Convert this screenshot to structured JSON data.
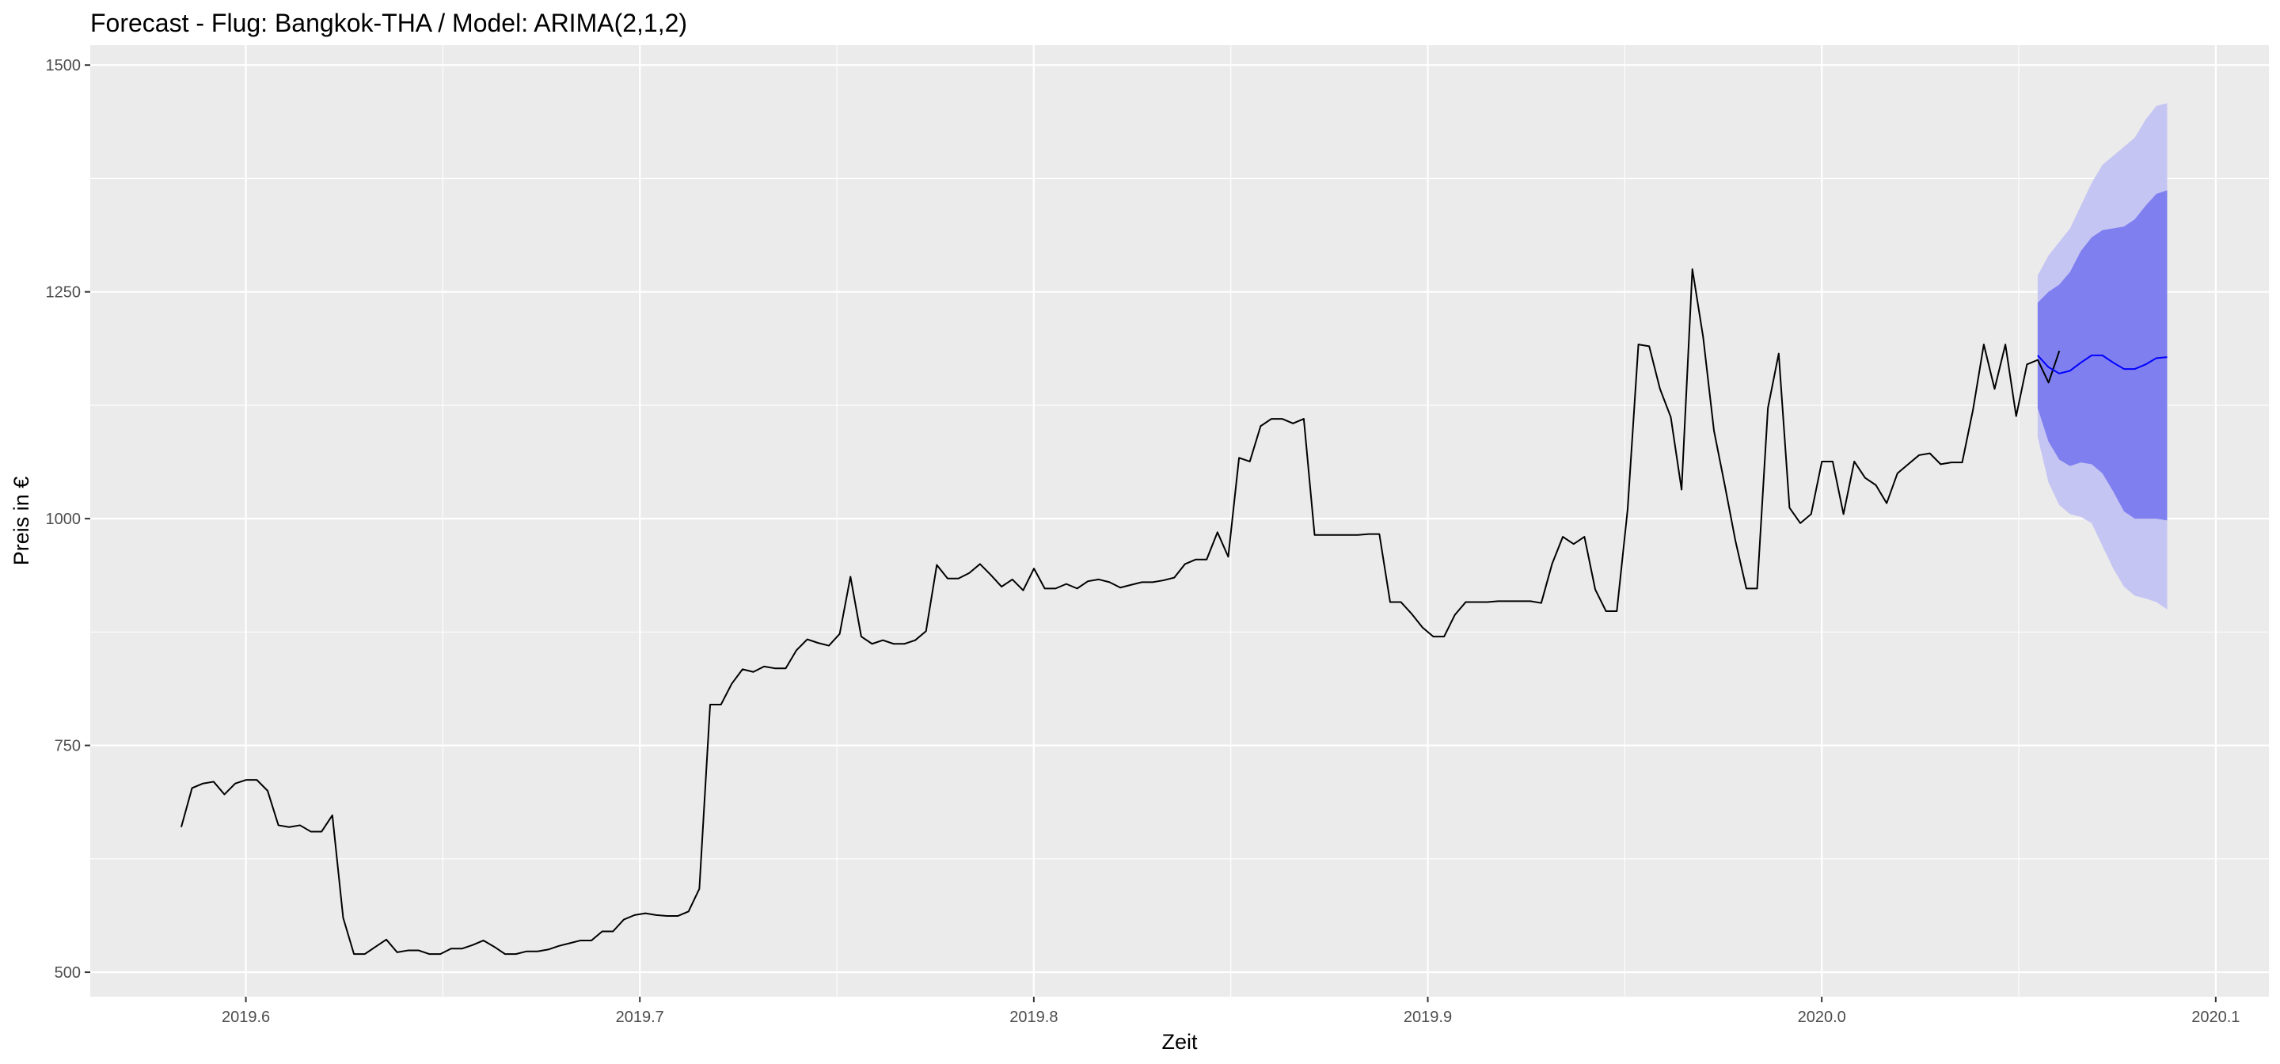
{
  "chart_data": {
    "type": "line",
    "title": "Forecast - Flug: Bangkok-THA / Model: ARIMA(2,1,2)",
    "xlabel": "Zeit",
    "ylabel": "Preis in €",
    "xlim": [
      2019.5605,
      2020.1135
    ],
    "ylim": [
      473,
      1522
    ],
    "x_ticks": [
      2019.6,
      2019.7,
      2019.8,
      2019.9,
      2020.0,
      2020.1
    ],
    "x_tick_labels": [
      "2019.6",
      "2019.7",
      "2019.8",
      "2019.9",
      "2020.0",
      "2020.1"
    ],
    "y_ticks": [
      500,
      750,
      1000,
      1250,
      1500
    ],
    "y_tick_labels": [
      "500",
      "750",
      "1000",
      "1250",
      "1500"
    ],
    "grid": true,
    "legend": "none",
    "colors": {
      "panel": "#ebebeb",
      "grid": "#ffffff",
      "series": "#000000",
      "forecast": "#0000ff",
      "interval_80": "#7f7ff0",
      "interval_95": "#c5c5f3"
    },
    "series": [
      {
        "x_start": 2019.5836,
        "x_step": 0.0027397,
        "values": [
          660,
          703,
          708,
          710,
          696,
          708,
          712,
          712,
          700,
          662,
          660,
          662,
          655,
          655,
          673,
          560,
          520,
          520,
          528,
          536,
          522,
          524,
          524,
          520,
          520,
          526,
          526,
          530,
          535,
          528,
          520,
          520,
          523,
          523,
          525,
          529,
          532,
          535,
          535,
          545,
          545,
          558,
          563,
          565,
          563,
          562,
          562,
          567,
          592,
          795,
          795,
          818,
          834,
          831,
          837,
          835,
          835,
          855,
          867,
          863,
          860,
          873,
          936,
          870,
          862,
          866,
          862,
          862,
          866,
          876,
          949,
          934,
          934,
          940,
          950,
          938,
          925,
          933,
          921,
          945,
          923,
          923,
          928,
          923,
          931,
          933,
          930,
          924,
          927,
          930,
          930,
          932,
          935,
          950,
          955,
          955,
          985,
          958,
          1067,
          1063,
          1102,
          1110,
          1110,
          1105,
          1110,
          982,
          982,
          982,
          982,
          982,
          983,
          983,
          908,
          908,
          895,
          880,
          870,
          870,
          894,
          908,
          908,
          908,
          909,
          909,
          909,
          909,
          907,
          950,
          980,
          972,
          980,
          922,
          898,
          898,
          1010,
          1192,
          1190,
          1143,
          1112,
          1032,
          1275,
          1200,
          1097,
          1037,
          975,
          923,
          923,
          1122,
          1182,
          1012,
          995,
          1005,
          1063,
          1063,
          1005,
          1063,
          1045,
          1037,
          1017,
          1050,
          1060,
          1070,
          1072,
          1060,
          1062,
          1062,
          1120,
          1192,
          1143,
          1192,
          1113,
          1170,
          1175,
          1150,
          1185
        ]
      },
      {
        "name": "",
        "x_start": 2020.0548,
        "x_step": 0.0027397,
        "values": [
          1180,
          1167,
          1160,
          1163,
          1172,
          1180,
          1180,
          1172,
          1165,
          1165,
          1170,
          1177,
          1178
        ],
        "lo80": [
          1122,
          1085,
          1065,
          1058,
          1062,
          1060,
          1050,
          1030,
          1008,
          1000,
          1000,
          1000,
          998
        ],
        "hi80": [
          1238,
          1250,
          1258,
          1272,
          1295,
          1310,
          1318,
          1320,
          1322,
          1330,
          1345,
          1358,
          1362
        ],
        "lo95": [
          1090,
          1040,
          1015,
          1005,
          1002,
          995,
          970,
          945,
          925,
          915,
          912,
          908,
          900
        ],
        "hi95": [
          1268,
          1290,
          1305,
          1320,
          1345,
          1370,
          1390,
          1400,
          1410,
          1420,
          1440,
          1455,
          1458
        ]
      }
    ]
  }
}
